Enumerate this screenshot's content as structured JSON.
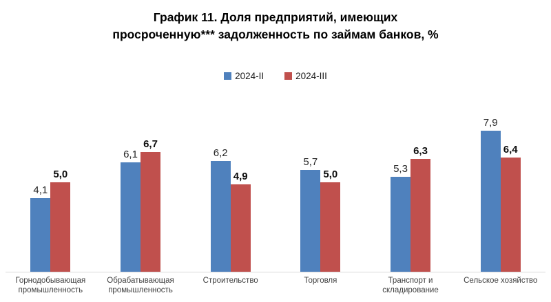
{
  "title_lines": [
    "График 11. Доля предприятий, имеющих",
    "просроченную*** задолженность по займам банков, %"
  ],
  "colors": {
    "series_2024_ii": "#4f81bd",
    "series_2024_iii": "#c0504d",
    "axis_line": "#d9d9d9",
    "category_text": "#3f3f3f",
    "title_text": "#000000"
  },
  "chart_data": {
    "type": "bar",
    "title": "График 11. Доля предприятий, имеющих просроченную*** задолженность по займам банков, %",
    "categories": [
      "Горнодобывающая промышленность",
      "Обрабатывающая промышленность",
      "Строительство",
      "Торговля",
      "Транспорт и складирование",
      "Сельское хозяйство"
    ],
    "series": [
      {
        "name": "2024-II",
        "color": "#4f81bd",
        "values": [
          4.1,
          6.1,
          6.2,
          5.7,
          5.3,
          7.9
        ],
        "labels": [
          "4,1",
          "6,1",
          "6,2",
          "5,7",
          "5,3",
          "7,9"
        ],
        "label_bold": false
      },
      {
        "name": "2024-III",
        "color": "#c0504d",
        "values": [
          5.0,
          6.7,
          4.9,
          5.0,
          6.3,
          6.4
        ],
        "labels": [
          "5,0",
          "6,7",
          "4,9",
          "5,0",
          "6,3",
          "6,4"
        ],
        "label_bold": true
      }
    ],
    "xlabel": "",
    "ylabel": "",
    "ylim": [
      0,
      8.5
    ],
    "grid": false,
    "legend_position": "top",
    "value_labels_shown": true
  }
}
